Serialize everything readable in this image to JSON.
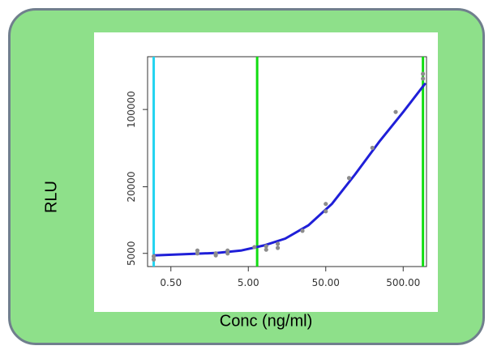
{
  "chart_data": {
    "type": "scatter",
    "xlabel": "Conc (ng/ml)",
    "ylabel": "RLU",
    "x_scale": "log",
    "y_scale": "log",
    "xlim": [
      0.25,
      1000
    ],
    "ylim": [
      3800,
      300000
    ],
    "x_ticks": [
      {
        "value": 0.5,
        "label": "0.50"
      },
      {
        "value": 5,
        "label": "5.00"
      },
      {
        "value": 50,
        "label": "50.00"
      },
      {
        "value": 500,
        "label": "500.00"
      }
    ],
    "y_ticks": [
      {
        "value": 5000,
        "label": "5000"
      },
      {
        "value": 20000,
        "label": "20000"
      },
      {
        "value": 100000,
        "label": "100000"
      }
    ],
    "points": [
      {
        "x": 0.3,
        "y": 4700
      },
      {
        "x": 0.3,
        "y": 4400
      },
      {
        "x": 1.1,
        "y": 5300
      },
      {
        "x": 1.1,
        "y": 5000
      },
      {
        "x": 1.9,
        "y": 5000
      },
      {
        "x": 1.9,
        "y": 4800
      },
      {
        "x": 2.7,
        "y": 5300
      },
      {
        "x": 2.7,
        "y": 5000
      },
      {
        "x": 6.0,
        "y": 5700
      },
      {
        "x": 8.5,
        "y": 5800
      },
      {
        "x": 8.5,
        "y": 5400
      },
      {
        "x": 12,
        "y": 6100
      },
      {
        "x": 12,
        "y": 5600
      },
      {
        "x": 25,
        "y": 8000
      },
      {
        "x": 50,
        "y": 12000
      },
      {
        "x": 50,
        "y": 14000
      },
      {
        "x": 100,
        "y": 24000
      },
      {
        "x": 200,
        "y": 45000
      },
      {
        "x": 400,
        "y": 95000
      },
      {
        "x": 900,
        "y": 190000
      },
      {
        "x": 900,
        "y": 210000
      }
    ],
    "fit_curve": [
      {
        "x": 0.3,
        "y": 4800
      },
      {
        "x": 1,
        "y": 4950
      },
      {
        "x": 2,
        "y": 5050
      },
      {
        "x": 4,
        "y": 5300
      },
      {
        "x": 8,
        "y": 5900
      },
      {
        "x": 15,
        "y": 6800
      },
      {
        "x": 30,
        "y": 9000
      },
      {
        "x": 60,
        "y": 14000
      },
      {
        "x": 120,
        "y": 26000
      },
      {
        "x": 250,
        "y": 52000
      },
      {
        "x": 500,
        "y": 95000
      },
      {
        "x": 950,
        "y": 170000
      }
    ],
    "reference_lines": [
      {
        "x": 0.3,
        "color": "#22d3f0"
      },
      {
        "x": 6.5,
        "color": "#11dd11"
      },
      {
        "x": 900,
        "color": "#11dd11"
      }
    ],
    "colors": {
      "curve": "#1f1fd8",
      "points": "#8c8c8c",
      "frame_bg": "#8ee08a",
      "frame_border": "#707f8d"
    }
  }
}
